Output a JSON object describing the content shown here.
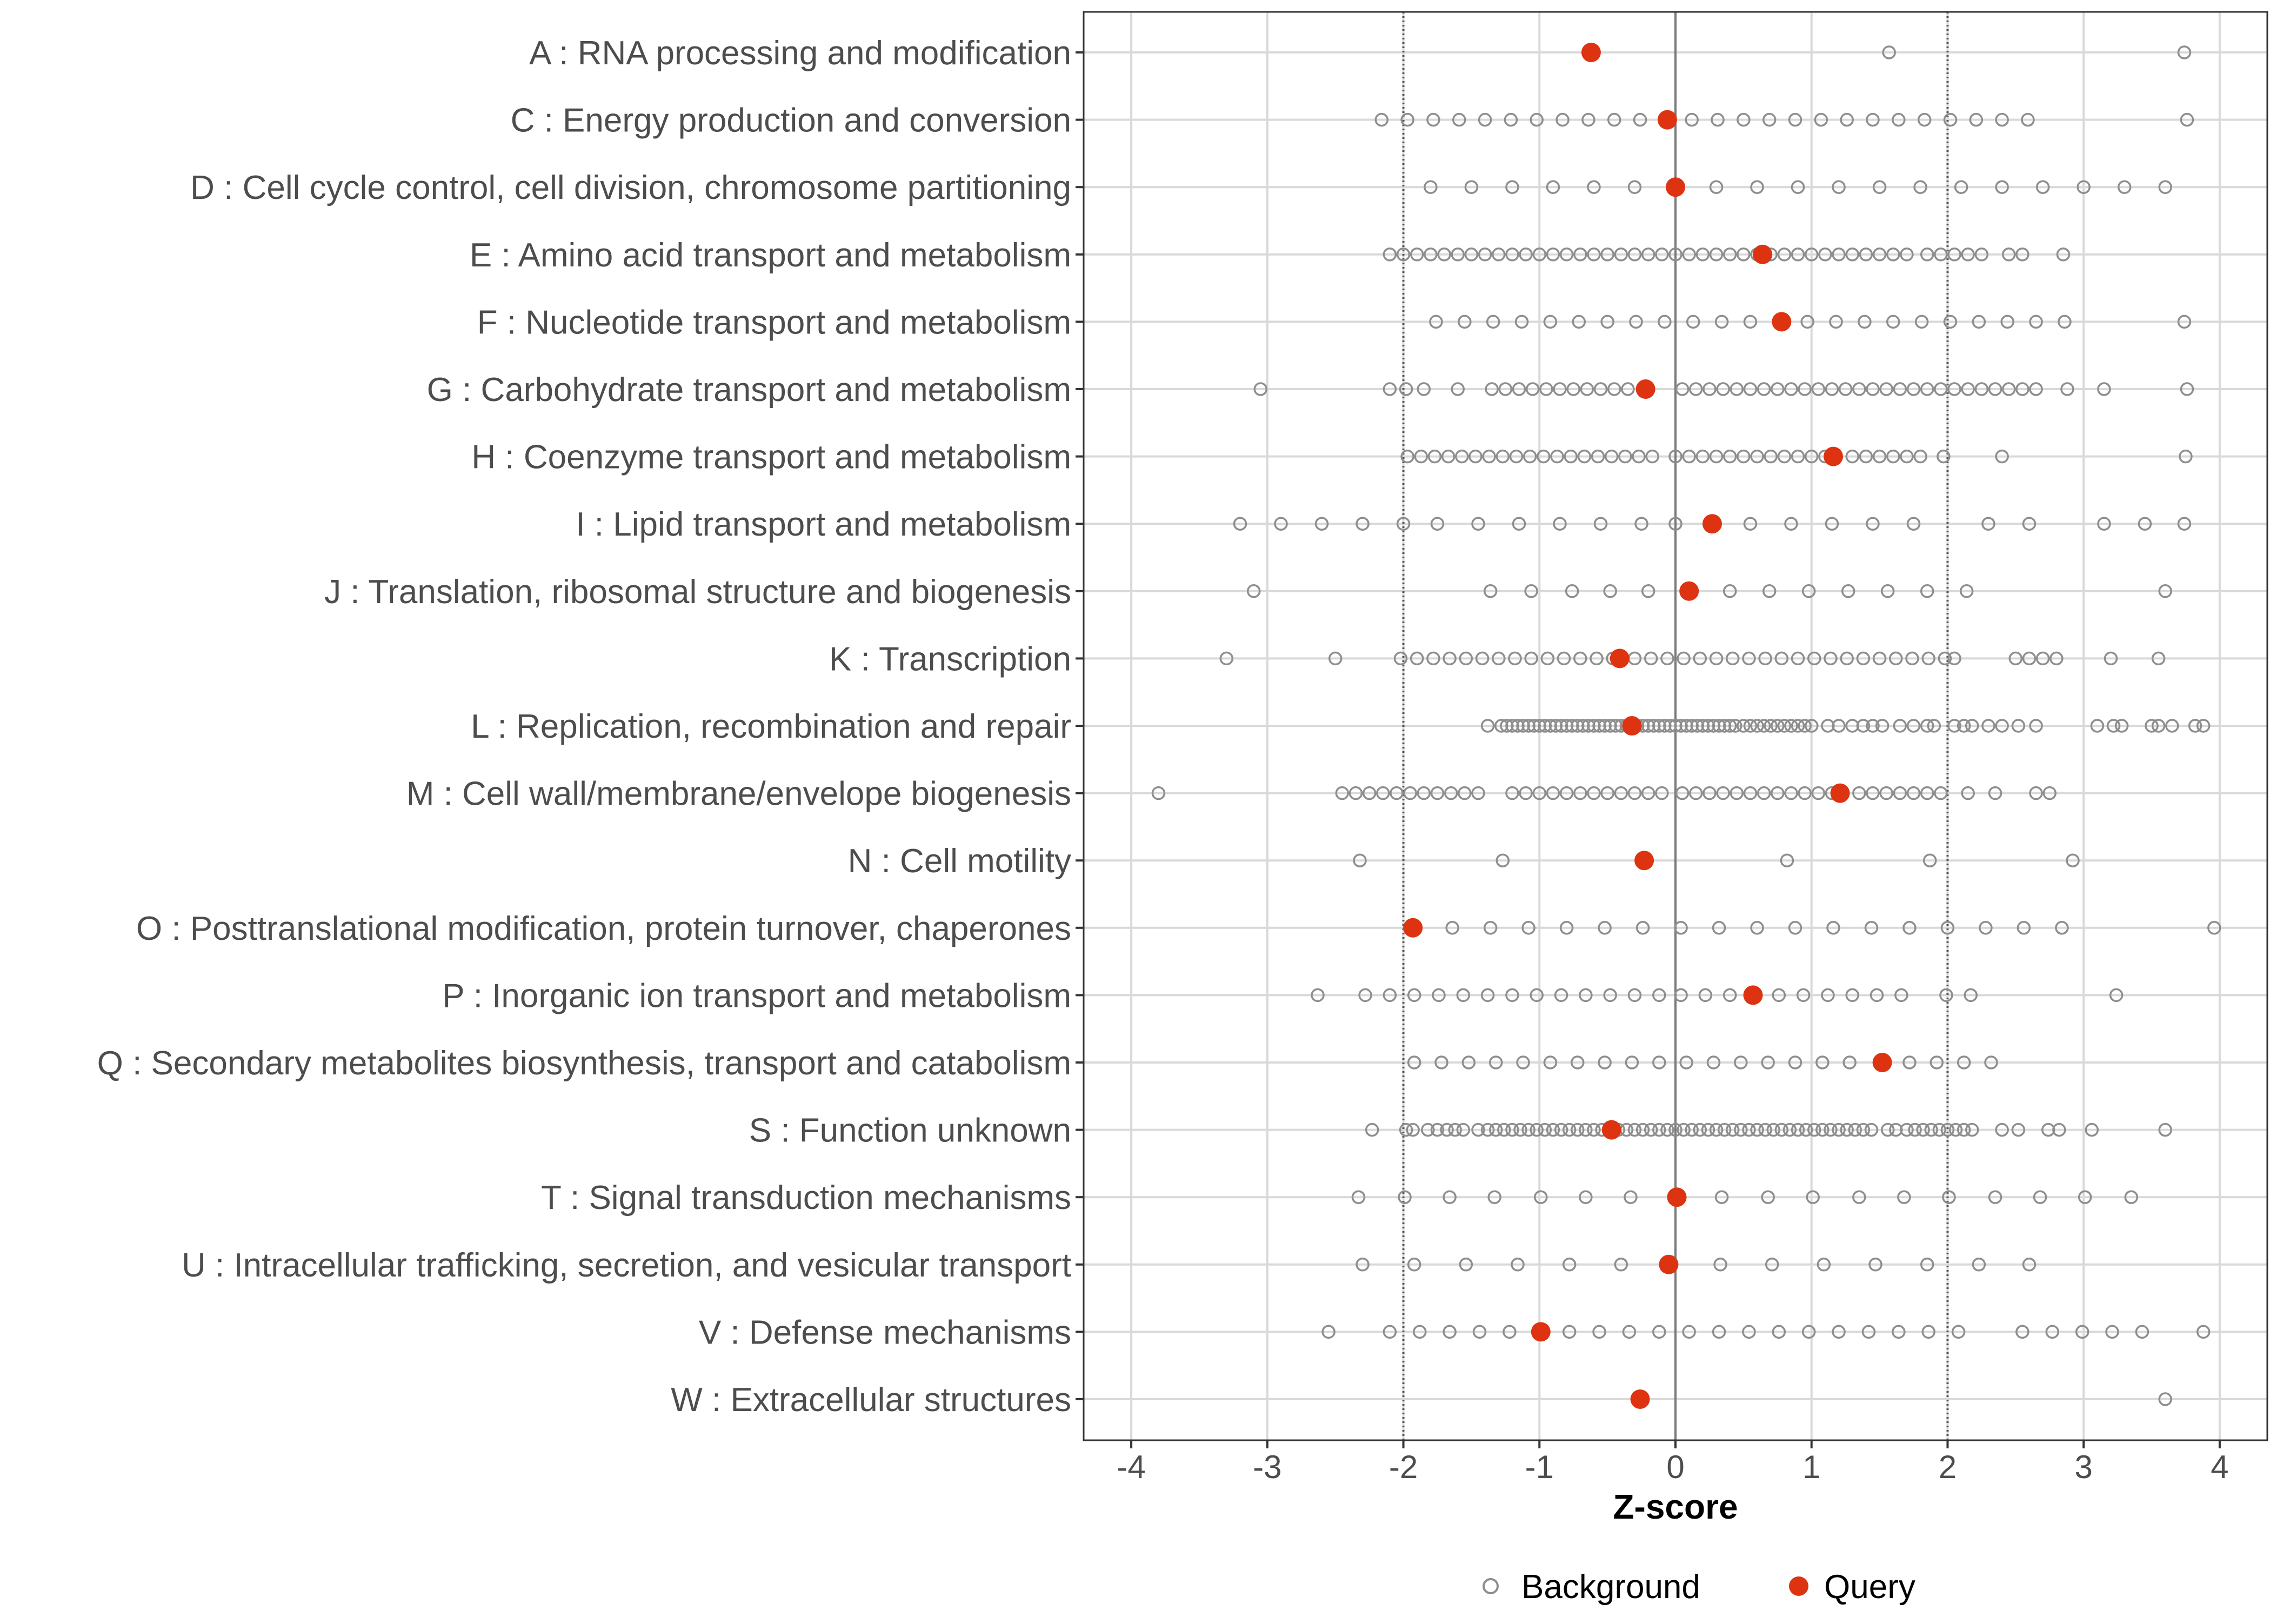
{
  "chart_data": {
    "type": "scatter",
    "title": "",
    "xlabel": "Z-score",
    "ylabel": "",
    "xlim": [
      -4.35,
      4.35
    ],
    "xticks": [
      -4,
      -3,
      -2,
      -1,
      0,
      1,
      2,
      3,
      4
    ],
    "reference_lines": {
      "solid": [
        0
      ],
      "dotted": [
        -2,
        2
      ]
    },
    "grid": true,
    "legend_position": "bottom",
    "colors": {
      "background": "#8e8e8e",
      "query": "#dd3311",
      "grid": "#d9d9d9",
      "axis_text": "#4d4d4d"
    },
    "legend": [
      {
        "name": "Background",
        "symbol": "open-circle"
      },
      {
        "name": "Query",
        "symbol": "filled-circle"
      }
    ],
    "categories": [
      "A : RNA processing and modification",
      "C : Energy production and conversion",
      "D : Cell cycle control, cell division, chromosome partitioning",
      "E : Amino acid transport and metabolism",
      "F : Nucleotide transport and metabolism",
      "G : Carbohydrate transport and metabolism",
      "H : Coenzyme transport and metabolism",
      "I : Lipid transport and metabolism",
      "J : Translation, ribosomal structure and biogenesis",
      "K : Transcription",
      "L : Replication, recombination and repair",
      "M : Cell wall/membrane/envelope biogenesis",
      "N : Cell motility",
      "O : Posttranslational modification, protein turnover, chaperones",
      "P : Inorganic ion transport and metabolism",
      "Q : Secondary metabolites biosynthesis, transport and catabolism",
      "S : Function unknown",
      "T : Signal transduction mechanisms",
      "U : Intracellular trafficking, secretion, and vesicular transport",
      "V : Defense mechanisms",
      "W : Extracellular structures"
    ],
    "series": [
      {
        "name": "Query",
        "values": [
          -0.62,
          -0.06,
          0,
          0.64,
          0.78,
          -0.22,
          1.16,
          0.27,
          0.1,
          -0.41,
          -0.32,
          1.21,
          -0.23,
          -1.93,
          0.57,
          1.52,
          -0.47,
          0.01,
          -0.05,
          -0.99,
          -0.26
        ]
      },
      {
        "name": "Background",
        "values": [
          [
            1.57,
            3.74
          ],
          [
            -2.16,
            -1.97,
            -1.78,
            -1.59,
            -1.4,
            -1.21,
            -1.02,
            -0.83,
            -0.64,
            -0.45,
            -0.26,
            -0.07,
            0.12,
            0.31,
            0.5,
            0.69,
            0.88,
            1.07,
            1.26,
            1.45,
            1.64,
            1.83,
            2.02,
            2.21,
            2.4,
            2.59,
            3.76
          ],
          [
            -1.8,
            -1.5,
            -1.2,
            -0.9,
            -0.6,
            -0.3,
            0,
            0.3,
            0.6,
            0.9,
            1.2,
            1.5,
            1.8,
            2.1,
            2.4,
            2.7,
            3.0,
            3.3,
            3.6
          ],
          [
            -2.1,
            -2.0,
            -1.9,
            -1.8,
            -1.7,
            -1.6,
            -1.5,
            -1.4,
            -1.3,
            -1.2,
            -1.1,
            -1.0,
            -0.9,
            -0.8,
            -0.7,
            -0.6,
            -0.5,
            -0.4,
            -0.3,
            -0.2,
            -0.1,
            0,
            0.1,
            0.2,
            0.3,
            0.4,
            0.5,
            0.6,
            0.7,
            0.8,
            0.9,
            1.0,
            1.1,
            1.2,
            1.3,
            1.4,
            1.5,
            1.6,
            1.7,
            1.85,
            1.95,
            2.05,
            2.15,
            2.25,
            2.45,
            2.55,
            2.85
          ],
          [
            -1.76,
            -1.55,
            -1.34,
            -1.13,
            -0.92,
            -0.71,
            -0.5,
            -0.29,
            -0.08,
            0.13,
            0.34,
            0.55,
            0.97,
            1.18,
            1.39,
            1.6,
            1.81,
            2.02,
            2.23,
            2.44,
            2.65,
            2.86,
            3.74
          ],
          [
            -3.05,
            -2.1,
            -1.98,
            -1.85,
            -1.6,
            -1.35,
            -1.25,
            -1.15,
            -1.05,
            -0.95,
            -0.85,
            -0.75,
            -0.65,
            -0.55,
            -0.45,
            -0.35,
            0.05,
            0.15,
            0.25,
            0.35,
            0.45,
            0.55,
            0.65,
            0.75,
            0.85,
            0.95,
            1.05,
            1.15,
            1.25,
            1.35,
            1.45,
            1.55,
            1.65,
            1.75,
            1.85,
            1.95,
            2.05,
            2.15,
            2.25,
            2.35,
            2.45,
            2.55,
            2.65,
            2.88,
            3.15,
            3.76
          ],
          [
            -1.97,
            -1.87,
            -1.77,
            -1.67,
            -1.57,
            -1.47,
            -1.37,
            -1.27,
            -1.17,
            -1.07,
            -0.97,
            -0.87,
            -0.77,
            -0.67,
            -0.57,
            -0.47,
            -0.37,
            -0.27,
            -0.17,
            0,
            0.1,
            0.2,
            0.3,
            0.4,
            0.5,
            0.6,
            0.7,
            0.8,
            0.9,
            1.0,
            1.1,
            1.3,
            1.4,
            1.5,
            1.6,
            1.7,
            1.8,
            1.97,
            2.4,
            3.75
          ],
          [
            -3.2,
            -2.9,
            -2.6,
            -2.3,
            -2.0,
            -1.75,
            -1.45,
            -1.15,
            -0.85,
            -0.55,
            -0.25,
            0,
            0.55,
            0.85,
            1.15,
            1.45,
            1.75,
            2.3,
            2.6,
            3.15,
            3.45,
            3.74
          ],
          [
            -3.1,
            -1.36,
            -1.06,
            -0.76,
            -0.48,
            -0.2,
            0.4,
            0.69,
            0.98,
            1.27,
            1.56,
            1.85,
            2.14,
            3.6
          ],
          [
            -3.3,
            -2.5,
            -2.02,
            -1.9,
            -1.78,
            -1.66,
            -1.54,
            -1.42,
            -1.3,
            -1.18,
            -1.06,
            -0.94,
            -0.82,
            -0.7,
            -0.58,
            -0.46,
            -0.3,
            -0.18,
            -0.06,
            0.06,
            0.18,
            0.3,
            0.42,
            0.54,
            0.66,
            0.78,
            0.9,
            1.02,
            1.14,
            1.26,
            1.38,
            1.5,
            1.62,
            1.74,
            1.86,
            1.98,
            2.05,
            2.5,
            2.6,
            2.7,
            2.8,
            3.2,
            3.55
          ],
          [
            -1.38,
            -1.28,
            -1.24,
            -1.2,
            -1.16,
            -1.12,
            -1.08,
            -1.04,
            -1.0,
            -0.96,
            -0.92,
            -0.88,
            -0.84,
            -0.8,
            -0.76,
            -0.72,
            -0.68,
            -0.64,
            -0.6,
            -0.56,
            -0.52,
            -0.48,
            -0.44,
            -0.4,
            -0.36,
            -0.28,
            -0.24,
            -0.2,
            -0.16,
            -0.12,
            -0.08,
            -0.04,
            0,
            0.04,
            0.08,
            0.12,
            0.16,
            0.2,
            0.24,
            0.28,
            0.32,
            0.36,
            0.4,
            0.44,
            0.5,
            0.55,
            0.6,
            0.65,
            0.7,
            0.75,
            0.8,
            0.85,
            0.9,
            0.95,
            1.0,
            1.12,
            1.2,
            1.3,
            1.38,
            1.45,
            1.52,
            1.65,
            1.75,
            1.85,
            1.9,
            2.05,
            2.12,
            2.18,
            2.3,
            2.4,
            2.52,
            2.65,
            3.1,
            3.22,
            3.28,
            3.5,
            3.55,
            3.65,
            3.82,
            3.88
          ],
          [
            -3.8,
            -2.45,
            -2.35,
            -2.25,
            -2.15,
            -2.05,
            -1.95,
            -1.85,
            -1.75,
            -1.65,
            -1.55,
            -1.45,
            -1.2,
            -1.1,
            -1.0,
            -0.9,
            -0.8,
            -0.7,
            -0.6,
            -0.5,
            -0.4,
            -0.3,
            -0.2,
            -0.1,
            0.05,
            0.15,
            0.25,
            0.35,
            0.45,
            0.55,
            0.65,
            0.75,
            0.85,
            0.95,
            1.05,
            1.15,
            1.35,
            1.45,
            1.55,
            1.65,
            1.75,
            1.85,
            1.95,
            2.15,
            2.35,
            2.65,
            2.75
          ],
          [
            -2.32,
            -1.27,
            0.82,
            1.87,
            2.92
          ],
          [
            -1.64,
            -1.36,
            -1.08,
            -0.8,
            -0.52,
            -0.24,
            0.04,
            0.32,
            0.6,
            0.88,
            1.16,
            1.44,
            1.72,
            2.0,
            2.28,
            2.56,
            2.84,
            3.96
          ],
          [
            -2.63,
            -2.28,
            -2.1,
            -1.92,
            -1.74,
            -1.56,
            -1.38,
            -1.2,
            -1.02,
            -0.84,
            -0.66,
            -0.48,
            -0.3,
            -0.12,
            0.04,
            0.22,
            0.4,
            0.76,
            0.94,
            1.12,
            1.3,
            1.48,
            1.66,
            1.99,
            2.17,
            3.24
          ],
          [
            -1.92,
            -1.72,
            -1.52,
            -1.32,
            -1.12,
            -0.92,
            -0.72,
            -0.52,
            -0.32,
            -0.12,
            0.08,
            0.28,
            0.48,
            0.68,
            0.88,
            1.08,
            1.28,
            1.72,
            1.92,
            2.12,
            2.32
          ],
          [
            -2.23,
            -1.98,
            -1.93,
            -1.82,
            -1.75,
            -1.68,
            -1.62,
            -1.56,
            -1.45,
            -1.38,
            -1.32,
            -1.26,
            -1.2,
            -1.14,
            -1.08,
            -1.02,
            -0.96,
            -0.9,
            -0.84,
            -0.78,
            -0.72,
            -0.66,
            -0.6,
            -0.54,
            -0.42,
            -0.36,
            -0.3,
            -0.24,
            -0.18,
            -0.12,
            -0.06,
            0,
            0.06,
            0.12,
            0.18,
            0.24,
            0.3,
            0.36,
            0.42,
            0.48,
            0.54,
            0.6,
            0.66,
            0.72,
            0.78,
            0.84,
            0.9,
            0.96,
            1.02,
            1.08,
            1.14,
            1.2,
            1.26,
            1.32,
            1.38,
            1.44,
            1.56,
            1.62,
            1.7,
            1.76,
            1.82,
            1.88,
            1.94,
            2.0,
            2.06,
            2.12,
            2.18,
            2.4,
            2.52,
            2.74,
            2.82,
            3.06,
            3.6
          ],
          [
            -2.33,
            -1.99,
            -1.66,
            -1.33,
            -0.99,
            -0.66,
            -0.33,
            0.34,
            0.68,
            1.01,
            1.35,
            1.68,
            2.01,
            2.35,
            2.68,
            3.01,
            3.35
          ],
          [
            -2.3,
            -1.92,
            -1.54,
            -1.16,
            -0.78,
            -0.4,
            0.33,
            0.71,
            1.09,
            1.47,
            1.85,
            2.23,
            2.6
          ],
          [
            -2.55,
            -2.1,
            -1.88,
            -1.66,
            -1.44,
            -1.22,
            -0.78,
            -0.56,
            -0.34,
            -0.12,
            0.1,
            0.32,
            0.54,
            0.76,
            0.98,
            1.2,
            1.42,
            1.64,
            1.86,
            2.08,
            2.55,
            2.77,
            2.99,
            3.21,
            3.43,
            3.88
          ],
          [
            3.6
          ]
        ]
      }
    ]
  }
}
